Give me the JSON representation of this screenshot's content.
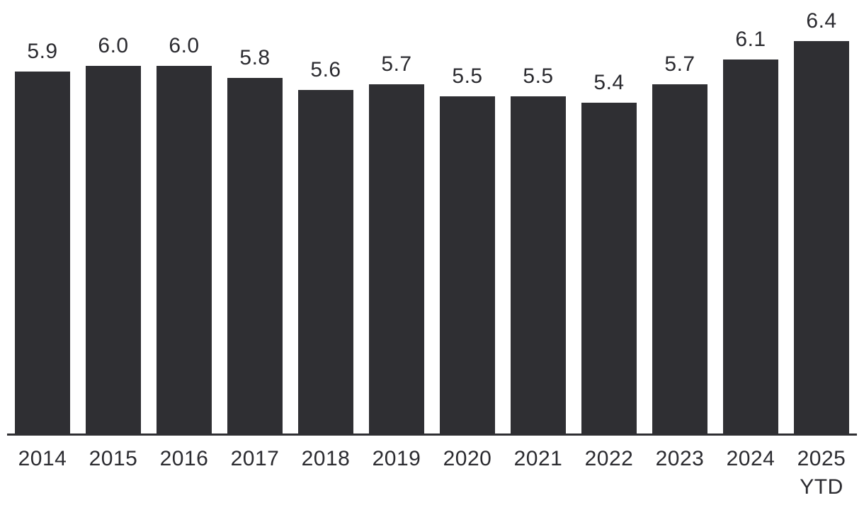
{
  "chart_data": {
    "type": "bar",
    "categories": [
      "2014",
      "2015",
      "2016",
      "2017",
      "2018",
      "2019",
      "2020",
      "2021",
      "2022",
      "2023",
      "2024",
      "2025\nYTD"
    ],
    "values": [
      5.9,
      6.0,
      6.0,
      5.8,
      5.6,
      5.7,
      5.5,
      5.5,
      5.4,
      5.7,
      6.1,
      6.4
    ],
    "value_labels": [
      "5.9",
      "6.0",
      "6.0",
      "5.8",
      "5.6",
      "5.7",
      "5.5",
      "5.5",
      "5.4",
      "5.7",
      "6.1",
      "6.4"
    ],
    "title": "",
    "xlabel": "",
    "ylabel": "",
    "ylim": [
      0,
      7.07
    ],
    "grid": false,
    "legend": null,
    "y_axis_shown": false,
    "baseline_shown": true,
    "colors": {
      "bar": "#2f2f33",
      "axis_line": "#2f2f33",
      "label_text": "#2b2b30",
      "background": "#ffffff"
    }
  }
}
